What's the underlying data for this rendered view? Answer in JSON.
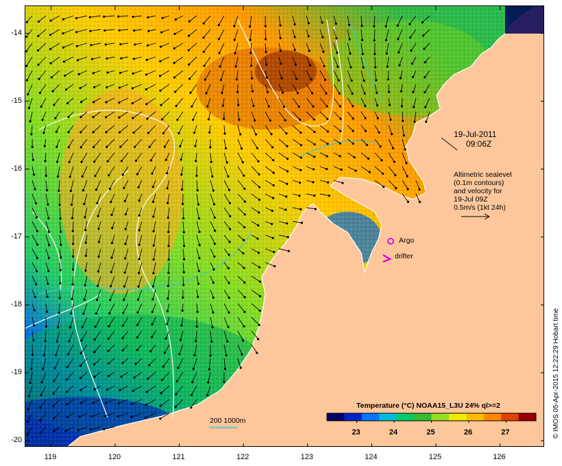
{
  "map": {
    "x_ticks": [
      {
        "label": "119",
        "value": 119
      },
      {
        "label": "120",
        "value": 120
      },
      {
        "label": "121",
        "value": 121
      },
      {
        "label": "122",
        "value": 122
      },
      {
        "label": "123",
        "value": 123
      },
      {
        "label": "124",
        "value": 124
      },
      {
        "label": "125",
        "value": 125
      },
      {
        "label": "126",
        "value": 126
      }
    ],
    "y_ticks": [
      {
        "label": "-14",
        "value": -14
      },
      {
        "label": "-15",
        "value": -15
      },
      {
        "label": "-16",
        "value": -16
      },
      {
        "label": "-17",
        "value": -17
      },
      {
        "label": "-18",
        "value": -18
      },
      {
        "label": "-19",
        "value": -19
      },
      {
        "label": "-20",
        "value": -20
      }
    ],
    "lon_range": [
      118.6,
      126.7
    ],
    "lat_range": [
      -20.1,
      -13.6
    ],
    "land_color": "#fdc79b"
  },
  "annotations": {
    "date": "19-Jul-2011",
    "time": "09:06Z",
    "legend_lines": [
      "Altimetric sealevel",
      "(0.1m contours)",
      "and velocity for",
      "19-Jul 09Z",
      "0.5m/s (1kt 24h)"
    ],
    "argo_label": "Argo",
    "drifter_label": "drifter",
    "depth_label": "200  1000m",
    "argo_color": "#e000e0",
    "contour_color": "#ffffff",
    "depth_color": "#3fc8c8"
  },
  "colorbar": {
    "title": "Temperature (°C) NOAA15_L3U 24% ql>=2",
    "ticks": [
      {
        "label": "23",
        "value": 23
      },
      {
        "label": "24",
        "value": 24
      },
      {
        "label": "25",
        "value": 25
      },
      {
        "label": "26",
        "value": 26
      },
      {
        "label": "27",
        "value": 27
      }
    ],
    "range": [
      22.2,
      27.8
    ],
    "colors": [
      "#000066",
      "#0022cc",
      "#0077ff",
      "#00bbdd",
      "#00cc66",
      "#33bb33",
      "#99dd22",
      "#eeee00",
      "#ffbb00",
      "#ff8800",
      "#dd4400",
      "#990000"
    ]
  },
  "credit": "© IMOS 05-Apr-2015 12:22:29 Hobart time"
}
